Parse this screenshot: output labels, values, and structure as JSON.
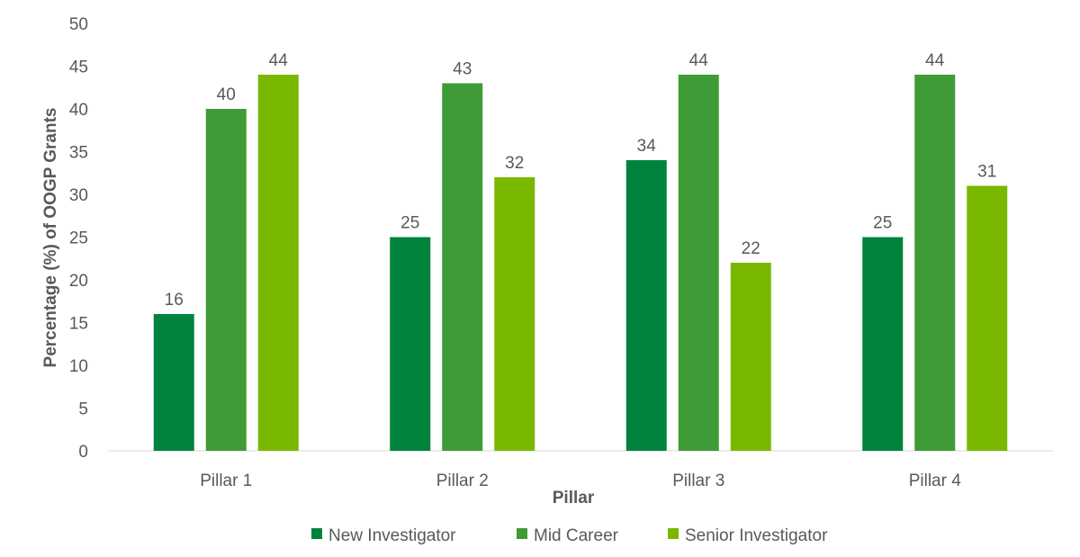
{
  "chart_data": {
    "type": "bar",
    "title": "",
    "xlabel": "Pillar",
    "ylabel": "Percentage (%) of OOGP Grants",
    "categories": [
      "Pillar 1",
      "Pillar 2",
      "Pillar 3",
      "Pillar 4"
    ],
    "series": [
      {
        "name": "New Investigator",
        "color": "#00843D",
        "values": [
          16,
          25,
          34,
          25
        ]
      },
      {
        "name": "Mid Career",
        "color": "#3F9B35",
        "values": [
          40,
          43,
          44,
          44
        ]
      },
      {
        "name": "Senior Investigator",
        "color": "#7AB800",
        "values": [
          44,
          32,
          22,
          31
        ]
      }
    ],
    "ylim": [
      0,
      50
    ],
    "yticks": [
      0,
      5,
      10,
      15,
      20,
      25,
      30,
      35,
      40,
      45,
      50
    ],
    "grid": false,
    "data_labels": true,
    "legend_position": "bottom"
  }
}
